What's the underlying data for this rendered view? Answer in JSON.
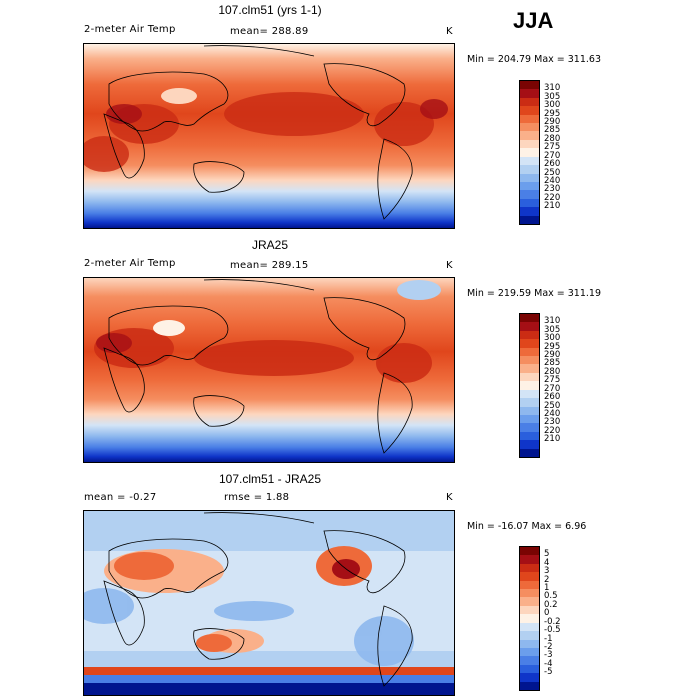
{
  "season": "JJA",
  "panels": [
    {
      "title": "107.clm51 (yrs 1-1)",
      "left_text": "2-meter Air Temp",
      "center_text": "mean= 288.89",
      "units": "K",
      "stats": "Min = 204.79 Max = 311.63",
      "colorbar": {
        "labels": [
          "310",
          "305",
          "300",
          "295",
          "290",
          "285",
          "280",
          "275",
          "270",
          "260",
          "250",
          "240",
          "230",
          "220",
          "210"
        ],
        "colors": [
          "#7a0403",
          "#a50f15",
          "#cb2c14",
          "#e0461c",
          "#ee6a3a",
          "#f58e60",
          "#fab08a",
          "#fdd6be",
          "#fef2e6",
          "#d3e4f6",
          "#b2d0f1",
          "#8eb8ee",
          "#6b9eec",
          "#4a7fe6",
          "#2a5fdd",
          "#0f35c9",
          "#00158f"
        ]
      }
    },
    {
      "title": "JRA25",
      "left_text": "2-meter Air Temp",
      "center_text": "mean= 289.15",
      "units": "K",
      "stats": "Min = 219.59 Max = 311.19",
      "colorbar": {
        "labels": [
          "310",
          "305",
          "300",
          "295",
          "290",
          "285",
          "280",
          "275",
          "270",
          "260",
          "250",
          "240",
          "230",
          "220",
          "210"
        ],
        "colors": [
          "#7a0403",
          "#a50f15",
          "#cb2c14",
          "#e0461c",
          "#ee6a3a",
          "#f58e60",
          "#fab08a",
          "#fdd6be",
          "#fef2e6",
          "#d3e4f6",
          "#b2d0f1",
          "#8eb8ee",
          "#6b9eec",
          "#4a7fe6",
          "#2a5fdd",
          "#0f35c9",
          "#00158f"
        ]
      }
    },
    {
      "title": "107.clm51 - JRA25",
      "left_text": "mean =   -0.27",
      "center_text": "rmse =    1.88",
      "units": "K",
      "stats": "Min = -16.07 Max =    6.96",
      "colorbar": {
        "labels": [
          "5",
          "4",
          "3",
          "2",
          "1",
          "0.5",
          "0.2",
          "0",
          "-0.2",
          "-0.5",
          "-1",
          "-2",
          "-3",
          "-4",
          "-5"
        ],
        "colors": [
          "#7a0403",
          "#a50f15",
          "#cb2c14",
          "#e0461c",
          "#ee6a3a",
          "#f58e60",
          "#fab08a",
          "#fdd6be",
          "#fef2e6",
          "#d3e4f6",
          "#b2d0f1",
          "#8eb8ee",
          "#6b9eec",
          "#4a7fe6",
          "#2a5fdd",
          "#0f35c9",
          "#00158f"
        ]
      }
    }
  ]
}
